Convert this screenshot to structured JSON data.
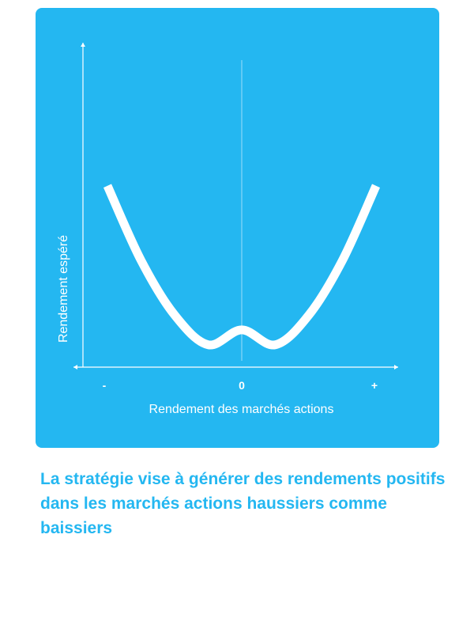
{
  "chart_data": {
    "type": "line",
    "title": "",
    "xlabel": "Rendement des marchés actions",
    "ylabel": "Rendement espéré",
    "x_ticks": [
      "-",
      "0",
      "+"
    ],
    "xlim": [
      -1,
      1
    ],
    "ylim": [
      0,
      1
    ],
    "grid": false,
    "series": [
      {
        "x": [
          -1,
          -0.75,
          -0.5,
          -0.25,
          0,
          0.25,
          0.5,
          0.75,
          1
        ],
        "y": [
          0.73,
          0.43,
          0.21,
          0.09,
          0.15,
          0.09,
          0.21,
          0.43,
          0.73
        ]
      }
    ]
  },
  "colors": {
    "card_background": "#24b7f1",
    "curve": "#ffffff",
    "axis": "#ffffff",
    "caption_text": "#24b7f1"
  },
  "caption": "La stratégie vise à générer des rendements positifs dans les marchés actions haussiers comme baissiers"
}
